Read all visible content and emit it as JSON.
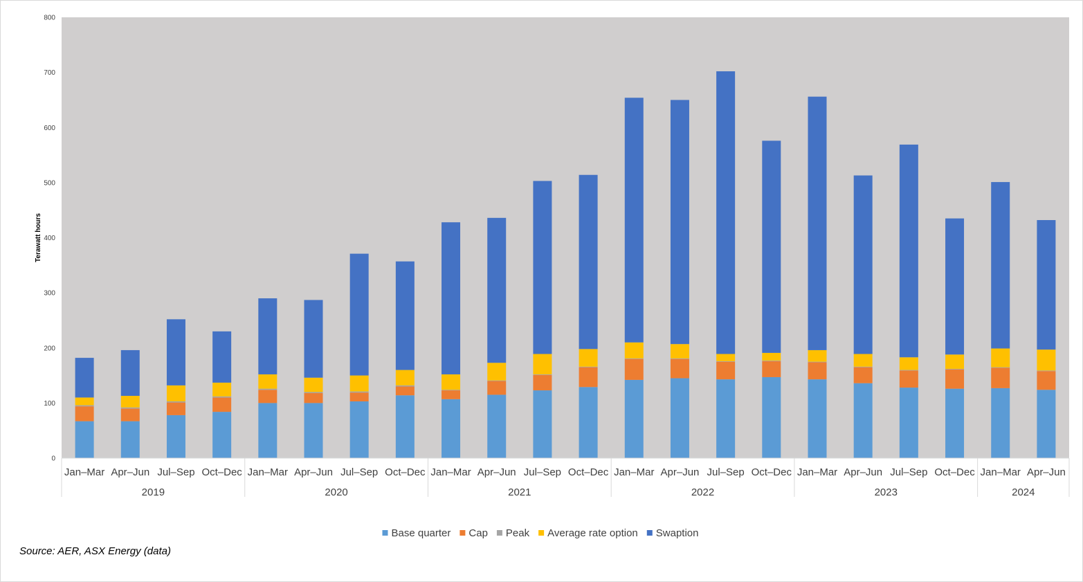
{
  "chart_data": {
    "type": "bar",
    "stacked": true,
    "ylabel": "Terawatt hours",
    "ylim": [
      0,
      800
    ],
    "yticks": [
      0,
      100,
      200,
      300,
      400,
      500,
      600,
      700,
      800
    ],
    "grid": false,
    "legend_position": "bottom",
    "plot_background": "#d0cece",
    "categories": [
      {
        "quarter": "Jan–Mar",
        "year": "2019"
      },
      {
        "quarter": "Apr–Jun",
        "year": "2019"
      },
      {
        "quarter": "Jul–Sep",
        "year": "2019"
      },
      {
        "quarter": "Oct–Dec",
        "year": "2019"
      },
      {
        "quarter": "Jan–Mar",
        "year": "2020"
      },
      {
        "quarter": "Apr–Jun",
        "year": "2020"
      },
      {
        "quarter": "Jul–Sep",
        "year": "2020"
      },
      {
        "quarter": "Oct–Dec",
        "year": "2020"
      },
      {
        "quarter": "Jan–Mar",
        "year": "2021"
      },
      {
        "quarter": "Apr–Jun",
        "year": "2021"
      },
      {
        "quarter": "Jul–Sep",
        "year": "2021"
      },
      {
        "quarter": "Oct–Dec",
        "year": "2021"
      },
      {
        "quarter": "Jan–Mar",
        "year": "2022"
      },
      {
        "quarter": "Apr–Jun",
        "year": "2022"
      },
      {
        "quarter": "Jul–Sep",
        "year": "2022"
      },
      {
        "quarter": "Oct–Dec",
        "year": "2022"
      },
      {
        "quarter": "Jan–Mar",
        "year": "2023"
      },
      {
        "quarter": "Apr–Jun",
        "year": "2023"
      },
      {
        "quarter": "Jul–Sep",
        "year": "2023"
      },
      {
        "quarter": "Oct–Dec",
        "year": "2023"
      },
      {
        "quarter": "Jan–Mar",
        "year": "2024"
      },
      {
        "quarter": "Apr–Jun",
        "year": "2024"
      }
    ],
    "year_groups": [
      {
        "year": "2019",
        "count": 4
      },
      {
        "year": "2020",
        "count": 4
      },
      {
        "year": "2021",
        "count": 4
      },
      {
        "year": "2022",
        "count": 4
      },
      {
        "year": "2023",
        "count": 4
      },
      {
        "year": "2024",
        "count": 2
      }
    ],
    "series": [
      {
        "name": "Base quarter",
        "color": "#5b9bd5",
        "values": [
          67,
          67,
          78,
          84,
          100,
          100,
          103,
          114,
          107,
          115,
          123,
          129,
          142,
          145,
          143,
          147,
          143,
          136,
          128,
          126,
          127,
          124
        ]
      },
      {
        "name": "Cap",
        "color": "#ed7d31",
        "values": [
          27,
          23,
          23,
          26,
          24,
          18,
          16,
          16,
          16,
          25,
          28,
          36,
          38,
          35,
          32,
          29,
          31,
          29,
          31,
          35,
          37,
          34
        ]
      },
      {
        "name": "Peak",
        "color": "#a5a5a5",
        "values": [
          2,
          2,
          2,
          2,
          2,
          2,
          2,
          2,
          1,
          1,
          1,
          1,
          1,
          1,
          1,
          1,
          1,
          1,
          1,
          1,
          1,
          1
        ]
      },
      {
        "name": "Average rate option",
        "color": "#ffc000",
        "values": [
          14,
          21,
          29,
          25,
          26,
          26,
          29,
          28,
          28,
          32,
          37,
          32,
          29,
          26,
          13,
          14,
          21,
          23,
          23,
          26,
          34,
          38
        ]
      },
      {
        "name": "Swaption",
        "color": "#4472c4",
        "values": [
          72,
          83,
          120,
          93,
          138,
          141,
          221,
          197,
          276,
          263,
          314,
          316,
          444,
          443,
          513,
          385,
          460,
          324,
          386,
          247,
          302,
          235
        ]
      }
    ]
  },
  "source_text": "Source: AER, ASX Energy (data)"
}
